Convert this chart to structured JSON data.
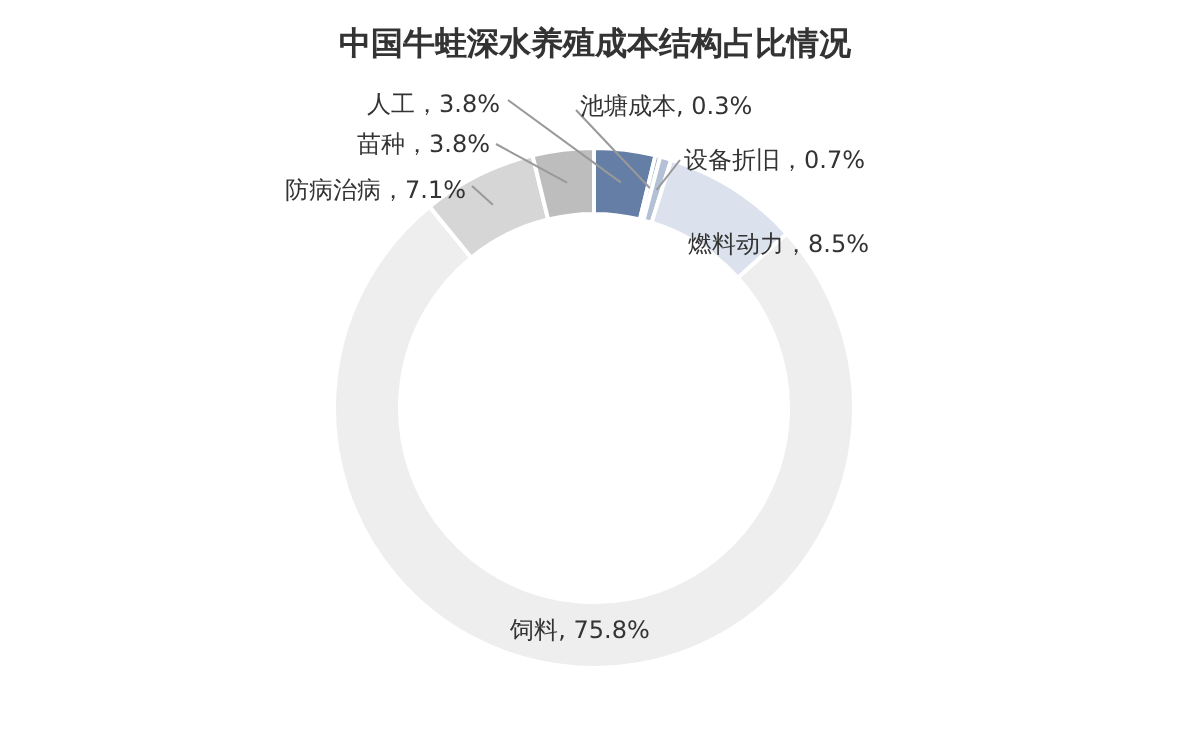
{
  "chart_data": {
    "type": "donut",
    "title": "中国牛蛙深水养殖成本结构占比情况",
    "categories": [
      "人工",
      "池塘成本",
      "设备折旧",
      "燃料动力",
      "饲料",
      "防病治病",
      "苗种"
    ],
    "values": [
      3.8,
      0.3,
      0.7,
      8.5,
      75.8,
      7.1,
      3.8
    ],
    "colors": [
      "#647ea6",
      "#8ea0bf",
      "#b4c0d6",
      "#dce2ed",
      "#eeeeee",
      "#d6d6d6",
      "#bdbdbd"
    ],
    "value_labels": [
      "3.8%",
      "0.3%",
      "0.7%",
      "8.5%",
      "75.8%",
      "7.1%",
      "3.8%"
    ],
    "legend": false
  }
}
